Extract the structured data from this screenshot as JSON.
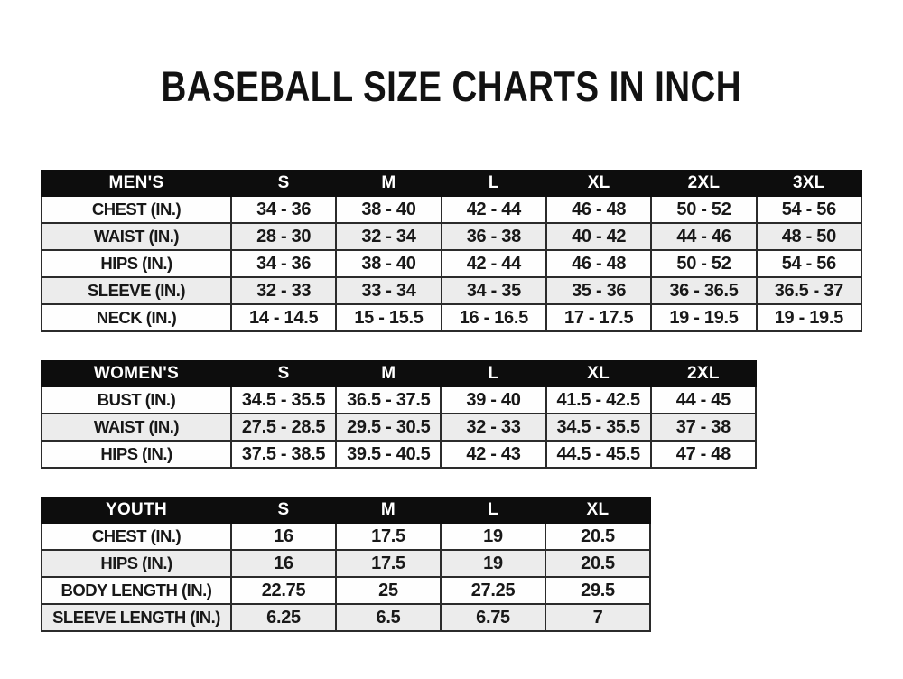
{
  "title": "BASEBALL SIZE CHARTS IN INCH",
  "colors": {
    "page_bg": "#ffffff",
    "header_bg": "#0d0d0d",
    "header_text": "#ffffff",
    "row_even_bg": "#fefefe",
    "row_odd_bg": "#ececec",
    "border": "#2b2b2b",
    "text": "#181818"
  },
  "chart_data": [
    {
      "type": "table",
      "id": "mens",
      "title": "MEN'S",
      "columns": [
        "MEN'S",
        "S",
        "M",
        "L",
        "XL",
        "2XL",
        "3XL"
      ],
      "rows": [
        [
          "CHEST (IN.)",
          "34 - 36",
          "38 - 40",
          "42 - 44",
          "46 - 48",
          "50 - 52",
          "54 - 56"
        ],
        [
          "WAIST (IN.)",
          "28 - 30",
          "32 - 34",
          "36 - 38",
          "40 - 42",
          "44 - 46",
          "48 - 50"
        ],
        [
          "HIPS (IN.)",
          "34 - 36",
          "38 - 40",
          "42 - 44",
          "46 - 48",
          "50 - 52",
          "54 - 56"
        ],
        [
          "SLEEVE (IN.)",
          "32 - 33",
          "33 - 34",
          "34 - 35",
          "35 - 36",
          "36 - 36.5",
          "36.5 - 37"
        ],
        [
          "NECK (IN.)",
          "14 - 14.5",
          "15 - 15.5",
          "16 - 16.5",
          "17 - 17.5",
          "19 - 19.5",
          "19 - 19.5"
        ]
      ]
    },
    {
      "type": "table",
      "id": "womens",
      "title": "WOMEN'S",
      "columns": [
        "WOMEN'S",
        "S",
        "M",
        "L",
        "XL",
        "2XL"
      ],
      "rows": [
        [
          "BUST (IN.)",
          "34.5 - 35.5",
          "36.5 - 37.5",
          "39 - 40",
          "41.5 - 42.5",
          "44 - 45"
        ],
        [
          "WAIST (IN.)",
          "27.5 - 28.5",
          "29.5 - 30.5",
          "32 - 33",
          "34.5 - 35.5",
          "37 - 38"
        ],
        [
          "HIPS (IN.)",
          "37.5 - 38.5",
          "39.5 - 40.5",
          "42 - 43",
          "44.5 - 45.5",
          "47 - 48"
        ]
      ]
    },
    {
      "type": "table",
      "id": "youth",
      "title": "YOUTH",
      "columns": [
        "YOUTH",
        "S",
        "M",
        "L",
        "XL"
      ],
      "rows": [
        [
          "CHEST (IN.)",
          "16",
          "17.5",
          "19",
          "20.5"
        ],
        [
          "HIPS (IN.)",
          "16",
          "17.5",
          "19",
          "20.5"
        ],
        [
          "BODY LENGTH (IN.)",
          "22.75",
          "25",
          "27.25",
          "29.5"
        ],
        [
          "SLEEVE LENGTH (IN.)",
          "6.25",
          "6.5",
          "6.75",
          "7"
        ]
      ]
    }
  ]
}
